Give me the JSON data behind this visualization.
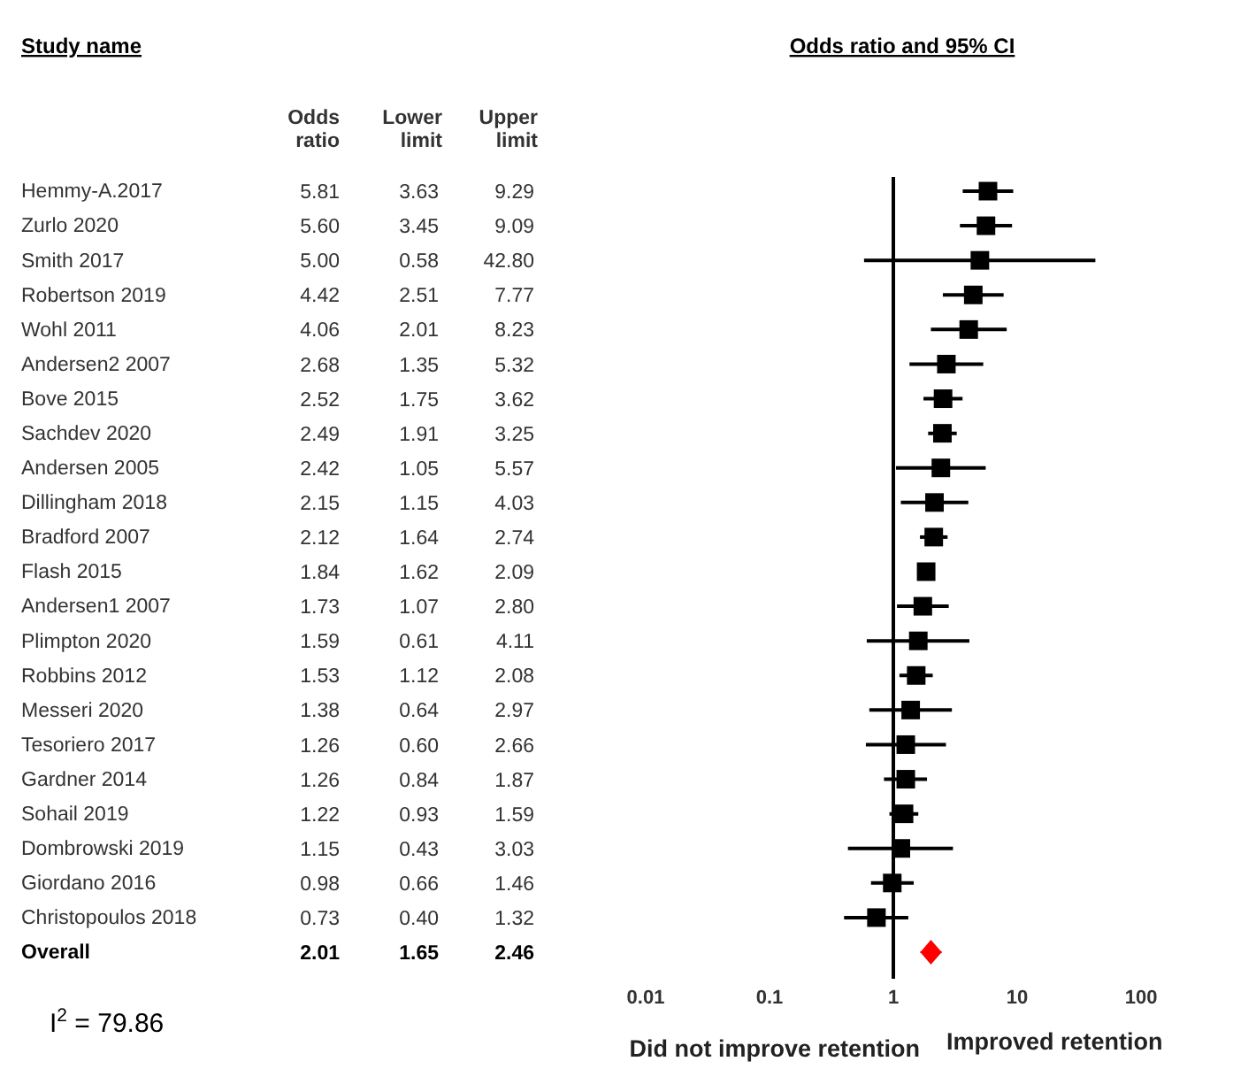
{
  "chart_data": [
    {
      "type": "other",
      "categories": [
        "Hemmy-A.2017",
        "Zurlo 2020",
        "Smith 2017",
        "Robertson 2019",
        "Wohl 2011",
        "Andersen2 2007",
        "Bove 2015",
        "Sachdev 2020",
        "Andersen 2005",
        "Dillingham 2018",
        "Bradford 2007",
        "Flash 2015",
        "Andersen1 2007",
        "Plimpton 2020",
        "Robbins 2012",
        "Messeri 2020",
        "Tesoriero 2017",
        "Gardner 2014",
        "Sohail 2019",
        "Dombrowski 2019",
        "Giordano 2016",
        "Christopoulos 2018",
        "Overall"
      ],
      "series": [
        {
          "name": "Odds ratio",
          "values": [
            5.81,
            5.6,
            5.0,
            4.42,
            4.06,
            2.68,
            2.52,
            2.49,
            2.42,
            2.15,
            2.12,
            1.84,
            1.73,
            1.59,
            1.53,
            1.38,
            1.26,
            1.26,
            1.22,
            1.15,
            0.98,
            0.73,
            2.01
          ],
          "value_labels": [
            "5.81",
            "5.60",
            "5.00",
            "4.42",
            "4.06",
            "2.68",
            "2.52",
            "2.49",
            "2.42",
            "2.15",
            "2.12",
            "1.84",
            "1.73",
            "1.59",
            "1.53",
            "1.38",
            "1.26",
            "1.26",
            "1.22",
            "1.15",
            "0.98",
            "0.73",
            "2.01"
          ]
        },
        {
          "name": "Lower limit",
          "values": [
            3.63,
            3.45,
            0.58,
            2.51,
            2.01,
            1.35,
            1.75,
            1.91,
            1.05,
            1.15,
            1.64,
            1.62,
            1.07,
            0.61,
            1.12,
            0.64,
            0.6,
            0.84,
            0.93,
            0.43,
            0.66,
            0.4,
            1.65
          ],
          "value_labels": [
            "3.63",
            "3.45",
            "0.58",
            "2.51",
            "2.01",
            "1.35",
            "1.75",
            "1.91",
            "1.05",
            "1.15",
            "1.64",
            "1.62",
            "1.07",
            "0.61",
            "1.12",
            "0.64",
            "0.60",
            "0.84",
            "0.93",
            "0.43",
            "0.66",
            "0.40",
            "1.65"
          ]
        },
        {
          "name": "Upper limit",
          "values": [
            9.29,
            9.09,
            42.8,
            7.77,
            8.23,
            5.32,
            3.62,
            3.25,
            5.57,
            4.03,
            2.74,
            2.09,
            2.8,
            4.11,
            2.08,
            2.97,
            2.66,
            1.87,
            1.59,
            3.03,
            1.46,
            1.32,
            2.46
          ],
          "value_labels": [
            "9.29",
            "9.09",
            "42.80",
            "7.77",
            "8.23",
            "5.32",
            "3.62",
            "3.25",
            "5.57",
            "4.03",
            "2.74",
            "2.09",
            "2.80",
            "4.11",
            "2.08",
            "2.97",
            "2.66",
            "1.87",
            "1.59",
            "3.03",
            "1.46",
            "1.32",
            "2.46"
          ]
        }
      ],
      "annotations": [
        "Study name",
        "I$^{2}$ = 79.86"
      ]
    },
    {
      "type": "scatter",
      "title": "Odds ratio and 95% CI",
      "categories": [
        null,
        null,
        null,
        null,
        null,
        null,
        null,
        null,
        null,
        null,
        null,
        null,
        null,
        null,
        null,
        null,
        null,
        null,
        null,
        null,
        null,
        null,
        null
      ],
      "series": [
        {
          "marker": "square",
          "color": "#000000",
          "values": [
            5.81,
            5.6,
            5.0,
            4.42,
            4.06,
            2.68,
            2.52,
            2.49,
            2.42,
            2.15,
            2.12,
            1.84,
            1.73,
            1.59,
            1.53,
            1.38,
            1.26,
            1.26,
            1.22,
            1.15,
            0.98,
            0.73,
            null
          ],
          "errors": [
            [
              3.63,
              9.29
            ],
            [
              3.45,
              9.09
            ],
            [
              0.58,
              42.8
            ],
            [
              2.51,
              7.77
            ],
            [
              2.01,
              8.23
            ],
            [
              1.35,
              5.32
            ],
            [
              1.75,
              3.62
            ],
            [
              1.91,
              3.25
            ],
            [
              1.05,
              5.57
            ],
            [
              1.15,
              4.03
            ],
            [
              1.64,
              2.74
            ],
            [
              1.62,
              2.09
            ],
            [
              1.07,
              2.8
            ],
            [
              0.61,
              4.11
            ],
            [
              1.12,
              2.08
            ],
            [
              0.64,
              2.97
            ],
            [
              0.6,
              2.66
            ],
            [
              0.84,
              1.87
            ],
            [
              0.93,
              1.59
            ],
            [
              0.43,
              3.03
            ],
            [
              0.66,
              1.46
            ],
            [
              0.4,
              1.32
            ],
            null
          ]
        },
        {
          "marker": "diamond",
          "color": "#ff0000",
          "values": [
            null,
            null,
            null,
            null,
            null,
            null,
            null,
            null,
            null,
            null,
            null,
            null,
            null,
            null,
            null,
            null,
            null,
            null,
            null,
            null,
            null,
            null,
            2.01
          ],
          "errors": [
            null,
            null,
            null,
            null,
            null,
            null,
            null,
            null,
            null,
            null,
            null,
            null,
            null,
            null,
            null,
            null,
            null,
            null,
            null,
            null,
            null,
            null,
            [
              1.65,
              2.46
            ]
          ]
        }
      ],
      "orientation": "horizontal",
      "log": "x",
      "xlim": [
        0.01,
        100
      ],
      "xticks": [
        0.01,
        0.1,
        1,
        10,
        100
      ],
      "tick_labels": "x",
      "ref_lines": [
        {
          "axis": "x",
          "value": 1,
          "color": "#000000"
        }
      ],
      "annotations": [
        "Did not improve retention",
        "Improved retention"
      ]
    }
  ]
}
